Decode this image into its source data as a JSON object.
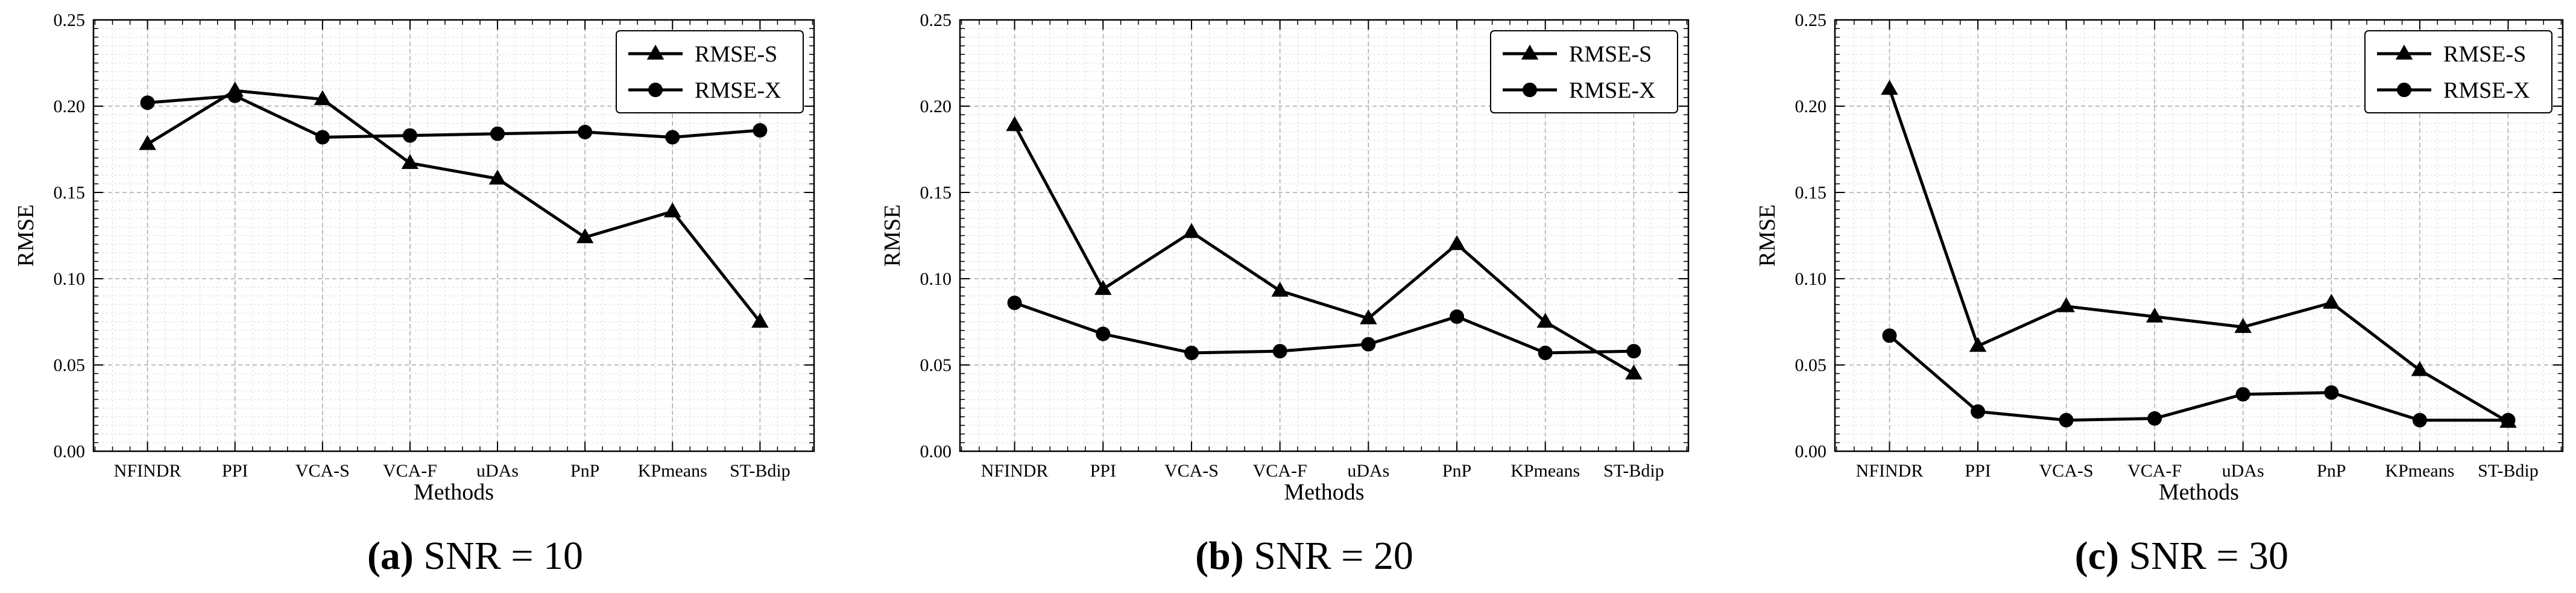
{
  "chart_data": [
    {
      "type": "line",
      "title": "",
      "xlabel": "Methods",
      "ylabel": "RMSE",
      "ylim": [
        0,
        0.25
      ],
      "yticks": [
        0,
        0.05,
        0.1,
        0.15,
        0.2,
        0.25
      ],
      "ytick_labels": [
        "0.00",
        "0.05",
        "0.10",
        "0.15",
        "0.20",
        "0.25"
      ],
      "categories": [
        "NFINDR",
        "PPI",
        "VCA-S",
        "VCA-F",
        "uDAs",
        "PnP",
        "KPmeans",
        "ST-Bdip"
      ],
      "grid": true,
      "legend_position": "top-right",
      "series": [
        {
          "name": "RMSE-S",
          "marker": "triangle",
          "values": [
            0.178,
            0.209,
            0.204,
            0.167,
            0.158,
            0.124,
            0.139,
            0.075
          ]
        },
        {
          "name": "RMSE-X",
          "marker": "circle",
          "values": [
            0.202,
            0.206,
            0.182,
            0.183,
            0.184,
            0.185,
            0.182,
            0.186
          ]
        }
      ],
      "caption_label": "(a)",
      "caption_text": "SNR = 10"
    },
    {
      "type": "line",
      "title": "",
      "xlabel": "Methods",
      "ylabel": "RMSE",
      "ylim": [
        0,
        0.25
      ],
      "yticks": [
        0,
        0.05,
        0.1,
        0.15,
        0.2,
        0.25
      ],
      "ytick_labels": [
        "0.00",
        "0.05",
        "0.10",
        "0.15",
        "0.20",
        "0.25"
      ],
      "categories": [
        "NFINDR",
        "PPI",
        "VCA-S",
        "VCA-F",
        "uDAs",
        "PnP",
        "KPmeans",
        "ST-Bdip"
      ],
      "grid": true,
      "legend_position": "top-right",
      "series": [
        {
          "name": "RMSE-S",
          "marker": "triangle",
          "values": [
            0.189,
            0.094,
            0.127,
            0.093,
            0.077,
            0.12,
            0.075,
            0.045
          ]
        },
        {
          "name": "RMSE-X",
          "marker": "circle",
          "values": [
            0.086,
            0.068,
            0.057,
            0.058,
            0.062,
            0.078,
            0.057,
            0.058
          ]
        }
      ],
      "caption_label": "(b)",
      "caption_text": "SNR = 20"
    },
    {
      "type": "line",
      "title": "",
      "xlabel": "Methods",
      "ylabel": "RMSE",
      "ylim": [
        0,
        0.25
      ],
      "yticks": [
        0,
        0.05,
        0.1,
        0.15,
        0.2,
        0.25
      ],
      "ytick_labels": [
        "0.00",
        "0.05",
        "0.10",
        "0.15",
        "0.20",
        "0.25"
      ],
      "categories": [
        "NFINDR",
        "PPI",
        "VCA-S",
        "VCA-F",
        "uDAs",
        "PnP",
        "KPmeans",
        "ST-Bdip"
      ],
      "grid": true,
      "legend_position": "top-right",
      "series": [
        {
          "name": "RMSE-S",
          "marker": "triangle",
          "values": [
            0.21,
            0.061,
            0.084,
            0.078,
            0.072,
            0.086,
            0.047,
            0.017
          ]
        },
        {
          "name": "RMSE-X",
          "marker": "circle",
          "values": [
            0.067,
            0.023,
            0.018,
            0.019,
            0.033,
            0.034,
            0.018,
            0.018
          ]
        }
      ],
      "caption_label": "(c)",
      "caption_text": "SNR = 30"
    }
  ]
}
